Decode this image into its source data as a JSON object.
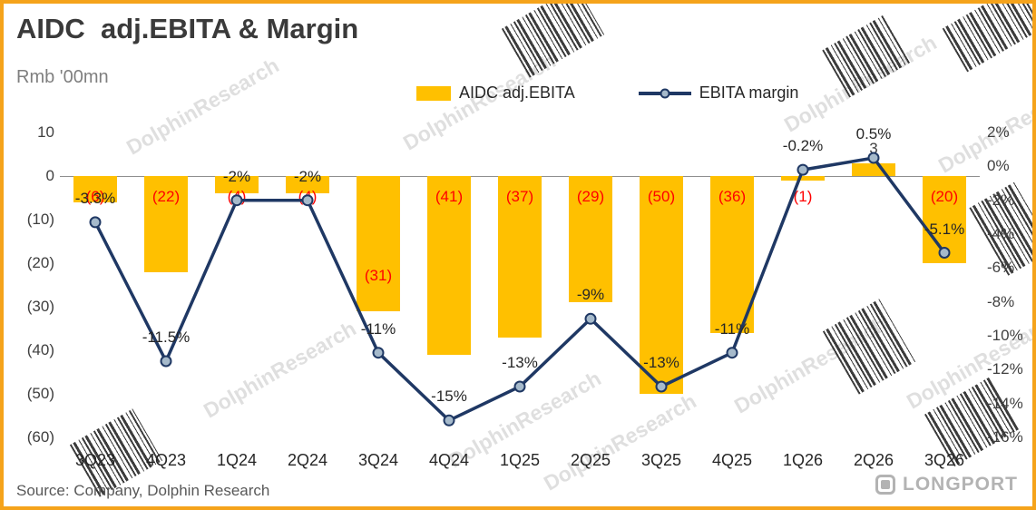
{
  "frame": {
    "border_color": "#F5A31B"
  },
  "title": "AIDC  adj.EBITA & Margin",
  "subtitle": "Rmb '00mn",
  "source": "Source: Company, Dolphin Research",
  "logo_text": "LONGPORT",
  "watermark_text": "DolphinResearch",
  "chart_data": {
    "type": "combo",
    "categories": [
      "3Q23",
      "4Q23",
      "1Q24",
      "2Q24",
      "3Q24",
      "4Q24",
      "1Q25",
      "2Q25",
      "3Q25",
      "4Q25",
      "1Q26",
      "2Q26",
      "3Q26"
    ],
    "series": [
      {
        "name": "AIDC adj.EBITA",
        "type": "bar",
        "axis": "left",
        "color": "#FFC000",
        "values": [
          -6,
          -22,
          -4,
          -4,
          -31,
          -41,
          -37,
          -29,
          -50,
          -36,
          -1,
          3,
          -20
        ],
        "labels": [
          "(6)",
          "(22)",
          "(4)",
          "(4)",
          "(31)",
          "(41)",
          "(37)",
          "(29)",
          "(50)",
          "(36)",
          "(1)",
          "3",
          "(20)"
        ]
      },
      {
        "name": "EBITA margin",
        "type": "line",
        "axis": "right",
        "color": "#1F3864",
        "marker_fill": "#A6BACB",
        "values": [
          -3.3,
          -11.5,
          -2,
          -2,
          -11,
          -15,
          -13,
          -9,
          -13,
          -11,
          -0.2,
          0.5,
          -5.1
        ],
        "labels": [
          "-3.3%",
          "-11.5%",
          "-2%",
          "-2%",
          "-11%",
          "-15%",
          "-13%",
          "-9%",
          "-13%",
          "-11%",
          "-0.2%",
          "0.5%",
          "-5.1%"
        ]
      }
    ],
    "left_axis": {
      "unit": "Rmb '00mn",
      "max": 10,
      "min": -60,
      "ticks": [
        "10",
        "0",
        "(10)",
        "(20)",
        "(30)",
        "(40)",
        "(50)",
        "(60)"
      ]
    },
    "right_axis": {
      "max": 2,
      "min": -16,
      "ticks": [
        "2%",
        "0%",
        "-2%",
        "-4%",
        "-6%",
        "-8%",
        "-10%",
        "-12%",
        "-14%",
        "-16%"
      ]
    },
    "grid": false,
    "legend_position": "top",
    "bar_label_colors": {
      "negative": "#FF0000",
      "positive": "#404040"
    },
    "layout_hints": {
      "low_bar_label": "3Q24"
    }
  }
}
